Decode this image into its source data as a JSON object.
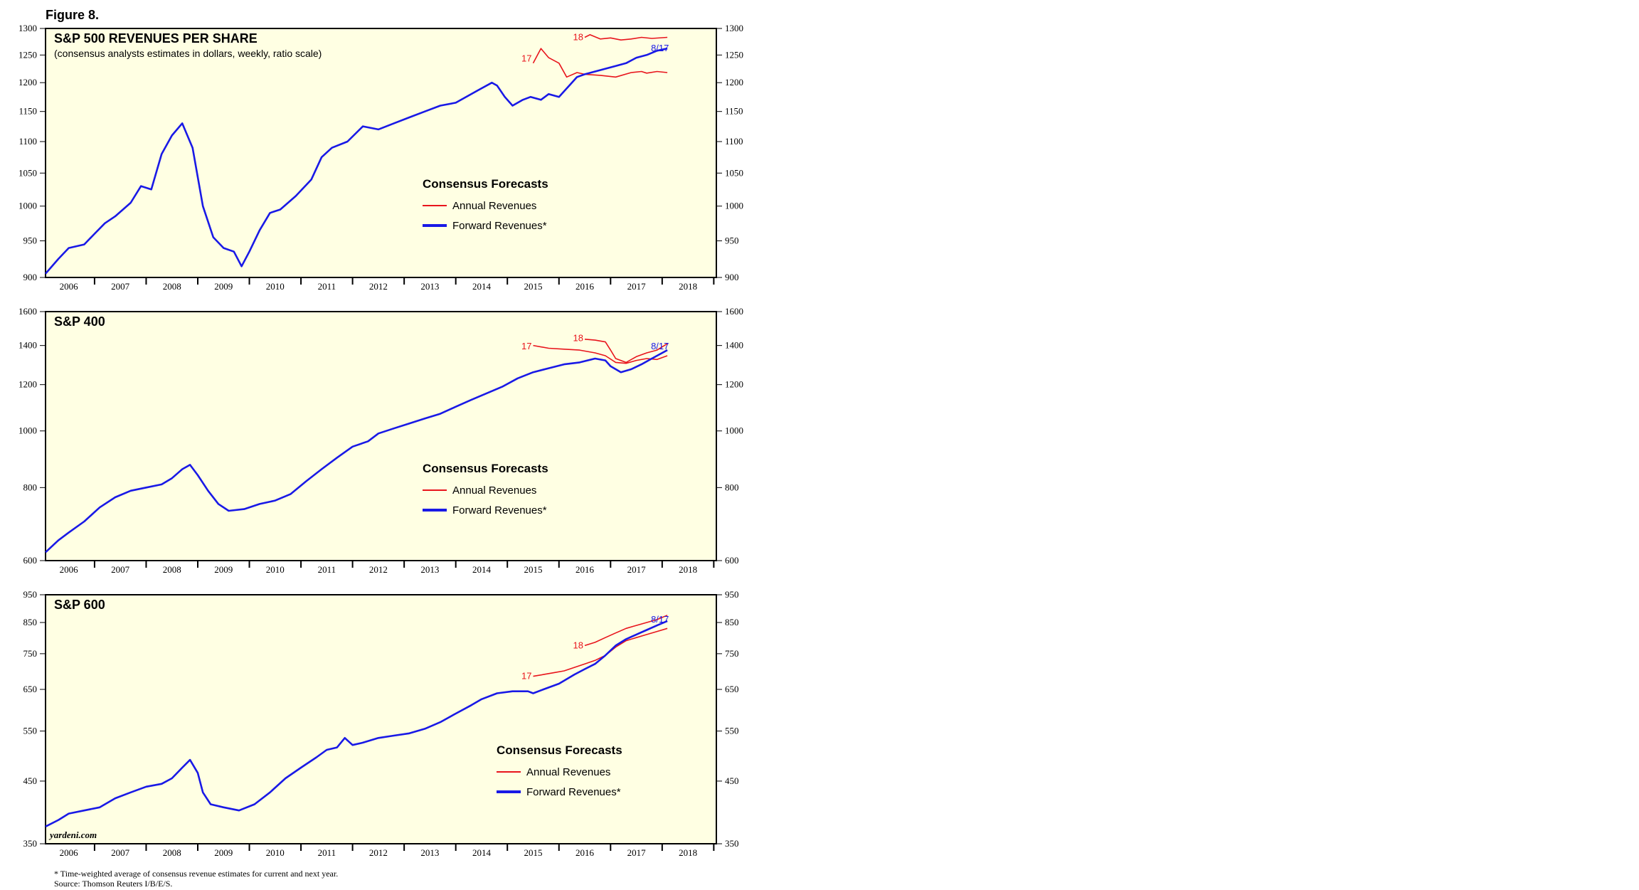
{
  "figure_label": "Figure 8.",
  "footnote": "* Time-weighted average of consensus revenue estimates for current and next year.",
  "source": "Source: Thomson Reuters I/B/E/S.",
  "watermark": "yardeni.com",
  "colors": {
    "annual": "#e8141c",
    "forward": "#1919e6",
    "plot_bg": "#ffffe3"
  },
  "chart_data": [
    {
      "type": "line",
      "title": "S&P 500 REVENUES PER SHARE",
      "subtitle": "(consensus analysts estimates in dollars, weekly, ratio scale)",
      "yscale": "log",
      "ylim": [
        900,
        1300
      ],
      "yticks": [
        900,
        950,
        1000,
        1050,
        1100,
        1150,
        1200,
        1250,
        1300
      ],
      "xlim": [
        2005.55,
        2018.55
      ],
      "xticks": [
        "2006",
        "2007",
        "2008",
        "2009",
        "2010",
        "2011",
        "2012",
        "2013",
        "2014",
        "2015",
        "2016",
        "2017",
        "2018"
      ],
      "legend": {
        "title": "Consensus Forecasts",
        "items": [
          "Annual Revenues",
          "Forward Revenues*"
        ]
      },
      "annotations": [
        {
          "text": "18",
          "x": 2016.0,
          "y": 1283,
          "series": "annual"
        },
        {
          "text": "17",
          "x": 2015.0,
          "y": 1243,
          "series": "annual"
        },
        {
          "text": "8/17",
          "x": 2017.2,
          "y": 1262,
          "series": "forward"
        }
      ],
      "series": [
        {
          "name": "Annual Revenues",
          "label": "17",
          "x": [
            2015.0,
            2015.15,
            2015.3,
            2015.5,
            2015.65,
            2015.85,
            2016.0,
            2016.3,
            2016.6,
            2016.9,
            2017.1,
            2017.2,
            2017.4,
            2017.6
          ],
          "y": [
            1235,
            1262,
            1245,
            1235,
            1210,
            1218,
            1215,
            1213,
            1210,
            1218,
            1220,
            1217,
            1220,
            1218
          ]
        },
        {
          "name": "Annual Revenues",
          "label": "18",
          "x": [
            2016.0,
            2016.1,
            2016.3,
            2016.5,
            2016.7,
            2016.9,
            2017.1,
            2017.3,
            2017.6
          ],
          "y": [
            1283,
            1288,
            1280,
            1282,
            1278,
            1280,
            1283,
            1281,
            1283
          ]
        },
        {
          "name": "Forward Revenues*",
          "x": [
            2005.55,
            2005.8,
            2006.0,
            2006.3,
            2006.5,
            2006.7,
            2006.9,
            2007.2,
            2007.4,
            2007.6,
            2007.8,
            2008.0,
            2008.2,
            2008.4,
            2008.6,
            2008.8,
            2009.0,
            2009.2,
            2009.35,
            2009.5,
            2009.7,
            2009.9,
            2010.1,
            2010.4,
            2010.7,
            2010.9,
            2011.1,
            2011.4,
            2011.7,
            2012.0,
            2012.3,
            2012.6,
            2012.9,
            2013.2,
            2013.5,
            2013.8,
            2014.0,
            2014.2,
            2014.3,
            2014.45,
            2014.6,
            2014.8,
            2014.95,
            2015.15,
            2015.3,
            2015.5,
            2015.7,
            2015.85,
            2016.0,
            2016.2,
            2016.4,
            2016.6,
            2016.8,
            2017.0,
            2017.2,
            2017.4,
            2017.6
          ],
          "y": [
            905,
            925,
            940,
            945,
            960,
            975,
            985,
            1005,
            1030,
            1025,
            1080,
            1110,
            1130,
            1090,
            1000,
            955,
            940,
            935,
            915,
            935,
            965,
            990,
            995,
            1015,
            1040,
            1075,
            1090,
            1100,
            1125,
            1120,
            1130,
            1140,
            1150,
            1160,
            1165,
            1180,
            1190,
            1200,
            1195,
            1175,
            1160,
            1170,
            1175,
            1170,
            1180,
            1175,
            1195,
            1210,
            1215,
            1220,
            1225,
            1230,
            1235,
            1245,
            1250,
            1258,
            1262
          ]
        }
      ]
    },
    {
      "type": "line",
      "title": "S&P 400",
      "yscale": "log",
      "ylim": [
        600,
        1600
      ],
      "yticks": [
        600,
        800,
        1000,
        1200,
        1400,
        1600
      ],
      "xlim": [
        2005.55,
        2018.55
      ],
      "xticks": [
        "2006",
        "2007",
        "2008",
        "2009",
        "2010",
        "2011",
        "2012",
        "2013",
        "2014",
        "2015",
        "2016",
        "2017",
        "2018"
      ],
      "legend": {
        "title": "Consensus Forecasts",
        "items": [
          "Annual Revenues",
          "Forward Revenues*"
        ]
      },
      "annotations": [
        {
          "text": "17",
          "x": 2015.0,
          "y": 1395,
          "series": "annual"
        },
        {
          "text": "18",
          "x": 2016.0,
          "y": 1440,
          "series": "annual"
        },
        {
          "text": "8/17",
          "x": 2017.2,
          "y": 1395,
          "series": "forward"
        }
      ],
      "series": [
        {
          "name": "Annual Revenues",
          "label": "17",
          "x": [
            2015.0,
            2015.3,
            2015.6,
            2015.9,
            2016.2,
            2016.4,
            2016.6,
            2016.8,
            2017.0,
            2017.2,
            2017.4,
            2017.6
          ],
          "y": [
            1400,
            1385,
            1380,
            1375,
            1360,
            1345,
            1310,
            1305,
            1320,
            1330,
            1325,
            1345
          ]
        },
        {
          "name": "Annual Revenues",
          "label": "18",
          "x": [
            2016.0,
            2016.2,
            2016.4,
            2016.5,
            2016.6,
            2016.8,
            2017.0,
            2017.2,
            2017.4,
            2017.6
          ],
          "y": [
            1435,
            1430,
            1420,
            1375,
            1330,
            1310,
            1340,
            1360,
            1375,
            1410
          ]
        },
        {
          "name": "Forward Revenues*",
          "x": [
            2005.55,
            2005.8,
            2006.0,
            2006.3,
            2006.6,
            2006.9,
            2007.2,
            2007.5,
            2007.8,
            2008.0,
            2008.2,
            2008.35,
            2008.5,
            2008.7,
            2008.9,
            2009.1,
            2009.4,
            2009.7,
            2010.0,
            2010.3,
            2010.6,
            2010.9,
            2011.2,
            2011.5,
            2011.8,
            2012.0,
            2012.3,
            2012.6,
            2012.9,
            2013.2,
            2013.5,
            2013.8,
            2014.1,
            2014.4,
            2014.7,
            2015.0,
            2015.3,
            2015.6,
            2015.9,
            2016.2,
            2016.4,
            2016.5,
            2016.7,
            2016.9,
            2017.1,
            2017.3,
            2017.6
          ],
          "y": [
            620,
            650,
            670,
            700,
            740,
            770,
            790,
            800,
            810,
            830,
            860,
            875,
            840,
            790,
            750,
            730,
            735,
            750,
            760,
            780,
            820,
            860,
            900,
            940,
            960,
            990,
            1010,
            1030,
            1050,
            1070,
            1100,
            1130,
            1160,
            1190,
            1230,
            1260,
            1280,
            1300,
            1310,
            1330,
            1320,
            1290,
            1260,
            1275,
            1300,
            1330,
            1375
          ]
        }
      ]
    },
    {
      "type": "line",
      "title": "S&P 600",
      "yscale": "log",
      "ylim": [
        350,
        950
      ],
      "yticks": [
        350,
        450,
        550,
        650,
        750,
        850,
        950
      ],
      "xlim": [
        2005.55,
        2018.55
      ],
      "xticks": [
        "2006",
        "2007",
        "2008",
        "2009",
        "2010",
        "2011",
        "2012",
        "2013",
        "2014",
        "2015",
        "2016",
        "2017",
        "2018"
      ],
      "legend": {
        "title": "Consensus Forecasts",
        "items": [
          "Annual Revenues",
          "Forward Revenues*"
        ]
      },
      "annotations": [
        {
          "text": "17",
          "x": 2015.0,
          "y": 685,
          "series": "annual"
        },
        {
          "text": "18",
          "x": 2016.0,
          "y": 775,
          "series": "annual"
        },
        {
          "text": "8/17",
          "x": 2017.2,
          "y": 860,
          "series": "forward"
        }
      ],
      "series": [
        {
          "name": "Annual Revenues",
          "label": "17",
          "x": [
            2015.0,
            2015.2,
            2015.4,
            2015.6,
            2015.8,
            2016.0,
            2016.2,
            2016.4,
            2016.6,
            2016.8,
            2017.0,
            2017.2,
            2017.4,
            2017.6
          ],
          "y": [
            685,
            690,
            695,
            700,
            710,
            720,
            730,
            745,
            770,
            790,
            800,
            810,
            820,
            830
          ]
        },
        {
          "name": "Annual Revenues",
          "label": "18",
          "x": [
            2016.0,
            2016.2,
            2016.4,
            2016.6,
            2016.8,
            2017.0,
            2017.2,
            2017.4,
            2017.6
          ],
          "y": [
            775,
            785,
            800,
            815,
            830,
            840,
            850,
            860,
            875
          ]
        },
        {
          "name": "Forward Revenues*",
          "x": [
            2005.55,
            2005.8,
            2006.0,
            2006.3,
            2006.6,
            2006.9,
            2007.2,
            2007.5,
            2007.8,
            2008.0,
            2008.2,
            2008.35,
            2008.5,
            2008.6,
            2008.75,
            2009.0,
            2009.3,
            2009.6,
            2009.9,
            2010.2,
            2010.5,
            2010.8,
            2011.0,
            2011.2,
            2011.35,
            2011.5,
            2011.7,
            2012.0,
            2012.3,
            2012.6,
            2012.9,
            2013.2,
            2013.5,
            2013.8,
            2014.0,
            2014.3,
            2014.6,
            2014.9,
            2015.0,
            2015.2,
            2015.5,
            2015.8,
            2016.0,
            2016.2,
            2016.4,
            2016.6,
            2016.8,
            2017.0,
            2017.2,
            2017.4,
            2017.6
          ],
          "y": [
            375,
            385,
            395,
            400,
            405,
            420,
            430,
            440,
            445,
            455,
            475,
            490,
            465,
            430,
            410,
            405,
            400,
            410,
            430,
            455,
            475,
            495,
            510,
            515,
            535,
            520,
            525,
            535,
            540,
            545,
            555,
            570,
            590,
            610,
            625,
            640,
            645,
            645,
            640,
            650,
            665,
            690,
            705,
            720,
            745,
            775,
            795,
            810,
            825,
            840,
            855
          ]
        }
      ]
    }
  ]
}
